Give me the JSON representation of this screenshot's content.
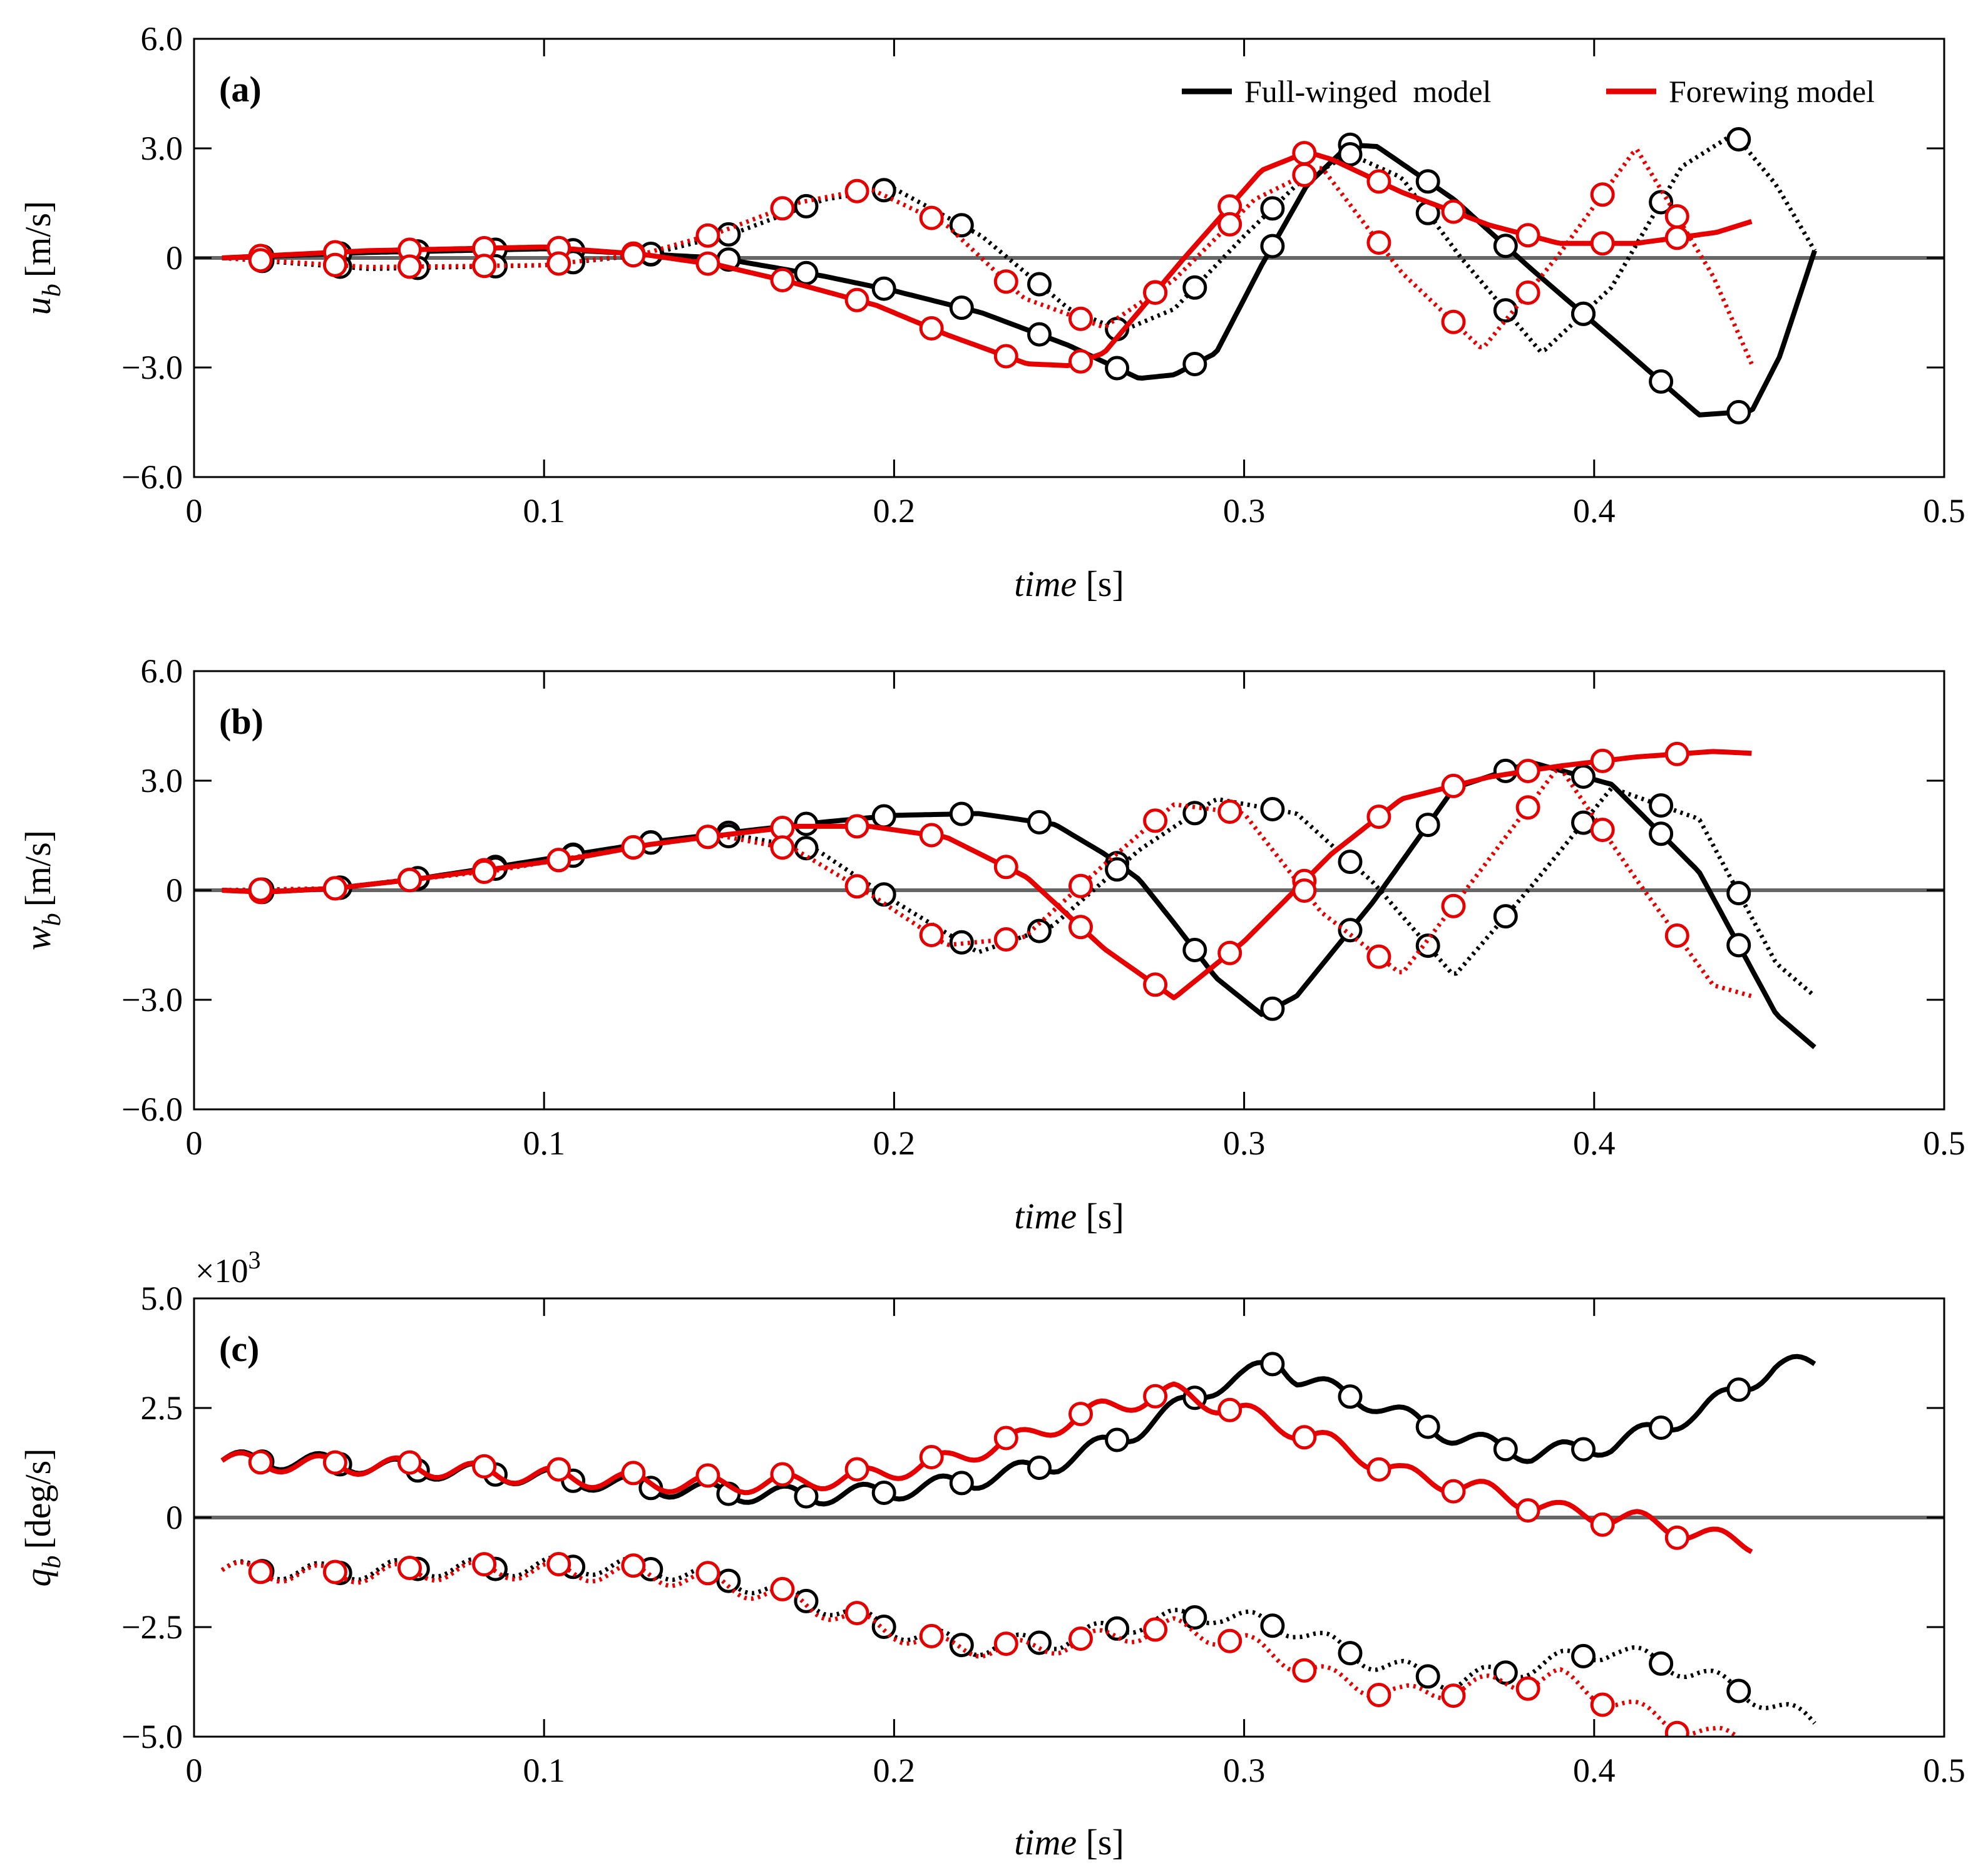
{
  "figure": {
    "legend": [
      {
        "label": "Full-winged  model",
        "color": "#000000"
      },
      {
        "label": "Forewing model",
        "color": "#e60000"
      }
    ],
    "colors": {
      "full": "#000000",
      "fore": "#e60000",
      "zero_line": "#666666",
      "marker_fill": "#ffffff"
    }
  },
  "chart_data": [
    {
      "id": "a",
      "type": "line",
      "panel_tag": "(a)",
      "xlabel_italic": "time",
      "xlabel_unit": "[s]",
      "ylabel_main": "u",
      "ylabel_sub": "b",
      "ylabel_unit": "[m/s]",
      "xlim": [
        0,
        0.5
      ],
      "ylim": [
        -6,
        6
      ],
      "xticks": [
        0,
        0.1,
        0.2,
        0.3,
        0.4,
        0.5
      ],
      "xtick_labels": [
        "0",
        "0.1",
        "0.2",
        "0.3",
        "0.4",
        "0.5"
      ],
      "yticks": [
        -6,
        -3,
        0,
        3,
        6
      ],
      "ytick_labels": [
        "−6.0",
        "−3.0",
        "0",
        "3.0",
        "6.0"
      ],
      "zero_line": true,
      "multiplier": "",
      "series": [
        {
          "name": "Full-winged solid",
          "model": "full",
          "style": "solid",
          "ripple": 0,
          "markers": true,
          "x": [
            0.008,
            0.05,
            0.1,
            0.13,
            0.15,
            0.18,
            0.2,
            0.225,
            0.25,
            0.27,
            0.28,
            0.292,
            0.305,
            0.318,
            0.33,
            0.338,
            0.36,
            0.382,
            0.405,
            0.43,
            0.445,
            0.453,
            0.463
          ],
          "y": [
            0.0,
            0.15,
            0.25,
            0.1,
            0.0,
            -0.5,
            -0.9,
            -1.5,
            -2.4,
            -3.3,
            -3.2,
            -2.6,
            -0.2,
            2.0,
            3.1,
            3.05,
            1.6,
            -0.3,
            -2.2,
            -4.3,
            -4.2,
            -2.7,
            0.2
          ]
        },
        {
          "name": "Full-winged dotted",
          "model": "full",
          "style": "dotted",
          "ripple": 0,
          "markers": true,
          "x": [
            0.008,
            0.05,
            0.1,
            0.13,
            0.155,
            0.18,
            0.2,
            0.225,
            0.25,
            0.265,
            0.28,
            0.3,
            0.315,
            0.33,
            0.345,
            0.362,
            0.385,
            0.405,
            0.425,
            0.44,
            0.452,
            0.463
          ],
          "y": [
            0.0,
            -0.3,
            -0.2,
            0.1,
            0.7,
            1.6,
            1.9,
            0.6,
            -1.4,
            -2.0,
            -1.4,
            0.6,
            2.0,
            2.85,
            2.2,
            0.0,
            -2.6,
            -0.8,
            2.5,
            3.4,
            2.0,
            0.2
          ]
        },
        {
          "name": "Forewing solid",
          "model": "fore",
          "style": "solid",
          "ripple": 0,
          "markers": true,
          "x": [
            0.008,
            0.05,
            0.1,
            0.128,
            0.15,
            0.17,
            0.195,
            0.215,
            0.238,
            0.25,
            0.26,
            0.282,
            0.305,
            0.318,
            0.325,
            0.345,
            0.37,
            0.39,
            0.412,
            0.435,
            0.445
          ],
          "y": [
            0.0,
            0.2,
            0.3,
            0.1,
            -0.2,
            -0.65,
            -1.3,
            -2.1,
            -2.9,
            -2.95,
            -2.6,
            -0.1,
            2.4,
            2.9,
            2.7,
            1.8,
            0.9,
            0.4,
            0.4,
            0.7,
            1.0
          ]
        },
        {
          "name": "Forewing dotted",
          "model": "fore",
          "style": "dotted",
          "ripple": 0,
          "markers": true,
          "x": [
            0.008,
            0.05,
            0.1,
            0.128,
            0.15,
            0.172,
            0.193,
            0.215,
            0.237,
            0.26,
            0.28,
            0.303,
            0.322,
            0.345,
            0.368,
            0.39,
            0.412,
            0.434,
            0.445
          ],
          "y": [
            0.0,
            -0.25,
            -0.2,
            0.1,
            0.7,
            1.5,
            1.9,
            0.9,
            -1.1,
            -1.9,
            -0.6,
            1.6,
            2.5,
            -0.4,
            -2.5,
            0.1,
            3.0,
            -0.5,
            -2.9
          ]
        }
      ]
    },
    {
      "id": "b",
      "type": "line",
      "panel_tag": "(b)",
      "xlabel_italic": "time",
      "xlabel_unit": "[s]",
      "ylabel_main": "w",
      "ylabel_sub": "b",
      "ylabel_unit": "[m/s]",
      "xlim": [
        0,
        0.5
      ],
      "ylim": [
        -6,
        6
      ],
      "xticks": [
        0,
        0.1,
        0.2,
        0.3,
        0.4,
        0.5
      ],
      "xtick_labels": [
        "0",
        "0.1",
        "0.2",
        "0.3",
        "0.4",
        "0.5"
      ],
      "yticks": [
        -6,
        -3,
        0,
        3,
        6
      ],
      "ytick_labels": [
        "−6.0",
        "−3.0",
        "0",
        "3.0",
        "6.0"
      ],
      "zero_line": true,
      "multiplier": "",
      "series": [
        {
          "name": "Full-winged solid",
          "model": "full",
          "style": "solid",
          "ripple": 0,
          "markers": true,
          "x": [
            0.008,
            0.02,
            0.04,
            0.063,
            0.087,
            0.11,
            0.133,
            0.155,
            0.178,
            0.2,
            0.224,
            0.246,
            0.26,
            0.27,
            0.28,
            0.292,
            0.305,
            0.315,
            0.337,
            0.36,
            0.382,
            0.405,
            0.43,
            0.452,
            0.463
          ],
          "y": [
            0.0,
            -0.05,
            0.05,
            0.3,
            0.65,
            1.0,
            1.35,
            1.6,
            1.85,
            2.05,
            2.1,
            1.8,
            1.0,
            0.3,
            -0.9,
            -2.4,
            -3.4,
            -2.9,
            -0.3,
            2.8,
            3.5,
            2.9,
            0.5,
            -3.4,
            -4.3
          ]
        },
        {
          "name": "Full-winged dotted",
          "model": "full",
          "style": "dotted",
          "ripple": 0,
          "markers": true,
          "x": [
            0.008,
            0.04,
            0.087,
            0.13,
            0.155,
            0.178,
            0.2,
            0.224,
            0.245,
            0.27,
            0.292,
            0.315,
            0.337,
            0.36,
            0.382,
            0.405,
            0.43,
            0.452,
            0.463
          ],
          "y": [
            0.0,
            0.05,
            0.6,
            1.3,
            1.5,
            1.1,
            -0.3,
            -1.7,
            -1.0,
            1.1,
            2.5,
            2.1,
            0.2,
            -2.35,
            0.1,
            2.8,
            1.95,
            -2.0,
            -2.9
          ]
        },
        {
          "name": "Forewing solid",
          "model": "fore",
          "style": "solid",
          "ripple": 0,
          "markers": true,
          "x": [
            0.008,
            0.02,
            0.04,
            0.063,
            0.087,
            0.11,
            0.13,
            0.15,
            0.172,
            0.193,
            0.215,
            0.238,
            0.26,
            0.28,
            0.3,
            0.325,
            0.345,
            0.37,
            0.39,
            0.412,
            0.434,
            0.445
          ],
          "y": [
            0.0,
            -0.05,
            0.05,
            0.3,
            0.6,
            0.9,
            1.25,
            1.5,
            1.75,
            1.75,
            1.45,
            0.35,
            -1.6,
            -2.95,
            -1.4,
            1.0,
            2.5,
            3.1,
            3.4,
            3.65,
            3.8,
            3.75
          ]
        },
        {
          "name": "Forewing dotted",
          "model": "fore",
          "style": "dotted",
          "ripple": 0,
          "markers": true,
          "x": [
            0.008,
            0.04,
            0.087,
            0.13,
            0.15,
            0.172,
            0.193,
            0.215,
            0.237,
            0.26,
            0.28,
            0.3,
            0.322,
            0.345,
            0.368,
            0.39,
            0.412,
            0.434,
            0.445
          ],
          "y": [
            0.0,
            0.05,
            0.55,
            1.25,
            1.5,
            1.1,
            -0.1,
            -1.5,
            -1.3,
            0.7,
            2.35,
            2.1,
            -0.6,
            -2.3,
            0.6,
            3.4,
            0.3,
            -2.6,
            -2.9
          ]
        }
      ]
    },
    {
      "id": "c",
      "type": "line",
      "panel_tag": "(c)",
      "xlabel_italic": "time",
      "xlabel_unit": "[s]",
      "ylabel_main": "q",
      "ylabel_sub": "b",
      "ylabel_unit": "[deg/s]",
      "xlim": [
        0,
        0.5
      ],
      "ylim": [
        -5,
        5
      ],
      "xticks": [
        0,
        0.1,
        0.2,
        0.3,
        0.4,
        0.5
      ],
      "xtick_labels": [
        "0",
        "0.1",
        "0.2",
        "0.3",
        "0.4",
        "0.5"
      ],
      "yticks": [
        -5,
        -2.5,
        0,
        2.5,
        5
      ],
      "ytick_labels": [
        "−5.0",
        "−2.5",
        "0",
        "2.5",
        "5.0"
      ],
      "zero_line": true,
      "multiplier": "×10",
      "multiplier_exp": "3",
      "series": [
        {
          "name": "Full-winged solid",
          "model": "full",
          "style": "solid",
          "ripple": 0.2,
          "markers": true,
          "x": [
            0.008,
            0.02,
            0.04,
            0.063,
            0.087,
            0.11,
            0.13,
            0.155,
            0.178,
            0.2,
            0.223,
            0.247,
            0.27,
            0.29,
            0.3,
            0.31,
            0.315,
            0.337,
            0.36,
            0.382,
            0.405,
            0.43,
            0.452,
            0.463
          ],
          "y": [
            1.3,
            1.3,
            1.25,
            1.1,
            1.0,
            0.85,
            0.7,
            0.55,
            0.5,
            0.6,
            0.85,
            1.25,
            2.0,
            2.95,
            3.2,
            3.6,
            3.2,
            2.6,
            1.85,
            1.45,
            1.65,
            2.4,
            3.45,
            3.5
          ]
        },
        {
          "name": "Full-winged dotted",
          "model": "full",
          "style": "dotted",
          "ripple": 0.2,
          "markers": true,
          "x": [
            0.008,
            0.02,
            0.04,
            0.063,
            0.087,
            0.11,
            0.13,
            0.155,
            0.178,
            0.2,
            0.223,
            0.247,
            0.27,
            0.292,
            0.315,
            0.337,
            0.36,
            0.382,
            0.405,
            0.43,
            0.452,
            0.463
          ],
          "y": [
            -1.2,
            -1.2,
            -1.25,
            -1.15,
            -1.15,
            -1.1,
            -1.15,
            -1.45,
            -1.95,
            -2.55,
            -2.95,
            -2.8,
            -2.4,
            -2.2,
            -2.55,
            -3.3,
            -3.75,
            -3.4,
            -3.0,
            -3.55,
            -4.3,
            -4.7
          ]
        },
        {
          "name": "Forewing solid",
          "model": "fore",
          "style": "solid",
          "ripple": 0.2,
          "markers": true,
          "x": [
            0.008,
            0.02,
            0.04,
            0.063,
            0.087,
            0.11,
            0.13,
            0.15,
            0.172,
            0.193,
            0.215,
            0.238,
            0.26,
            0.28,
            0.3,
            0.325,
            0.345,
            0.37,
            0.39,
            0.412,
            0.434,
            0.445
          ],
          "y": [
            1.3,
            1.25,
            1.2,
            1.15,
            1.0,
            0.9,
            0.8,
            0.75,
            0.8,
            0.95,
            1.3,
            1.85,
            2.5,
            2.85,
            2.4,
            1.7,
            1.0,
            0.6,
            0.15,
            -0.05,
            -0.45,
            -0.6
          ]
        },
        {
          "name": "Forewing dotted",
          "model": "fore",
          "style": "dotted",
          "ripple": 0.2,
          "markers": true,
          "x": [
            0.008,
            0.02,
            0.04,
            0.063,
            0.087,
            0.11,
            0.13,
            0.15,
            0.172,
            0.193,
            0.215,
            0.238,
            0.26,
            0.28,
            0.3,
            0.325,
            0.345,
            0.37,
            0.39,
            0.412,
            0.434,
            0.445
          ],
          "y": [
            -1.2,
            -1.25,
            -1.3,
            -1.25,
            -1.2,
            -1.25,
            -1.3,
            -1.5,
            -1.9,
            -2.45,
            -2.95,
            -3.0,
            -2.75,
            -2.5,
            -2.85,
            -3.65,
            -4.05,
            -3.8,
            -3.65,
            -4.4,
            -5.0,
            -5.0
          ]
        }
      ]
    }
  ]
}
